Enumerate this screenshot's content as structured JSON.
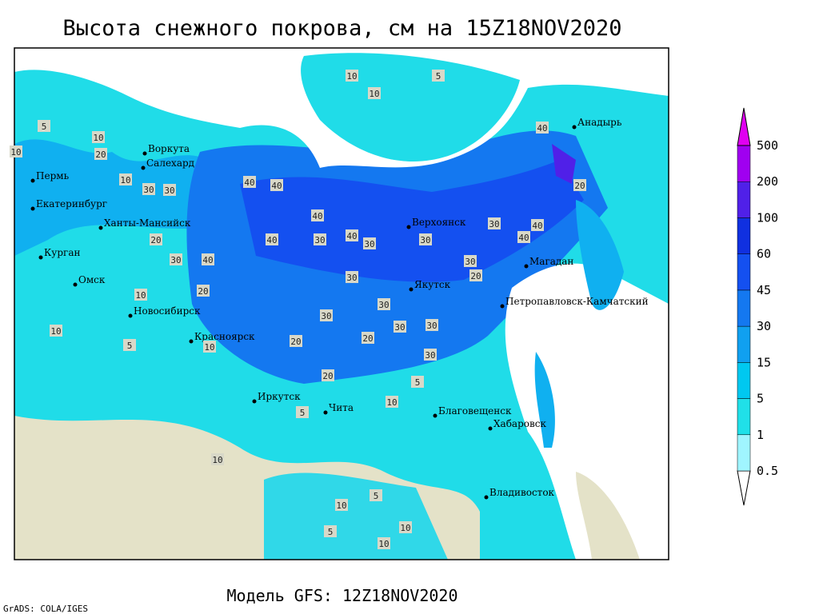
{
  "title": "Высота снежного покрова, см на 15Z18NOV2020",
  "subtitle": "Модель GFS: 12Z18NOV2020",
  "credit": "GrADS: COLA/IGES",
  "cities": [
    "Анадырь",
    "Воркута",
    "Салехард",
    "Пермь",
    "Екатеринбург",
    "Ханты-Мансийск",
    "Курган",
    "Омск",
    "Верхоянск",
    "Якутск",
    "Магадан",
    "Петропавловск-Камчатский",
    "Новосибирск",
    "Красноярск",
    "Иркутск",
    "Чита",
    "Благовещенск",
    "Хабаровск",
    "Владивосток"
  ],
  "contour_labels": [
    10,
    5,
    10,
    5,
    10,
    10,
    40,
    10,
    20,
    30,
    30,
    40,
    40,
    40,
    30,
    20,
    30,
    40,
    40,
    30,
    40,
    20,
    30,
    30,
    40,
    40,
    30,
    20,
    30,
    30,
    20,
    30,
    30,
    30,
    20,
    30,
    10,
    20,
    10,
    5,
    10,
    5,
    10,
    5,
    20,
    10,
    10,
    5,
    10,
    5,
    10
  ],
  "colorbar": {
    "levels": [
      0.5,
      1,
      5,
      15,
      30,
      45,
      60,
      100,
      200,
      500
    ],
    "colors": [
      "#ffffff",
      "#a0f5ff",
      "#20e0e8",
      "#00c8f0",
      "#10a0f0",
      "#1478f0",
      "#1450f0",
      "#1030e0",
      "#5020e8",
      "#a000f0",
      "#e000f0"
    ]
  }
}
